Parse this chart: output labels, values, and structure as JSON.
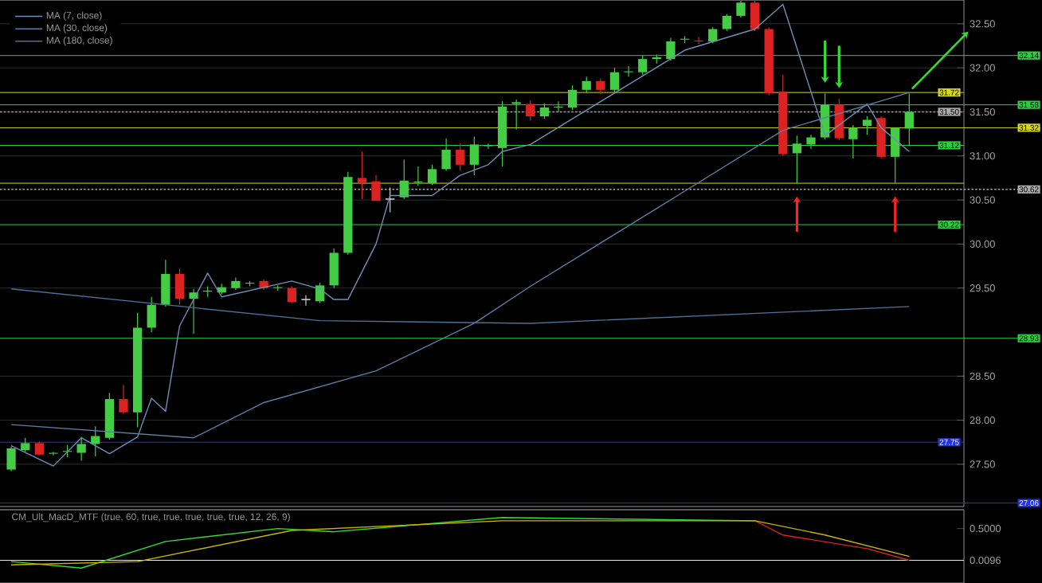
{
  "chart_data": [
    {
      "type": "candlestick",
      "categories": [
        null,
        null,
        null,
        null,
        null,
        null,
        null,
        null,
        null,
        null,
        null,
        null,
        null,
        null,
        null,
        null,
        null,
        null,
        null,
        null,
        null,
        null,
        null,
        null,
        null,
        null,
        null,
        null,
        null,
        null,
        null,
        null,
        null,
        null,
        null,
        null,
        null,
        null,
        null,
        null,
        null,
        null,
        null,
        null,
        null,
        null,
        null,
        null,
        null,
        null,
        null,
        null,
        null,
        null,
        null,
        null,
        null,
        null,
        null,
        null,
        null,
        null,
        null,
        null,
        null
      ],
      "ohlc": [
        [
          27.44,
          27.7,
          27.42,
          27.68
        ],
        [
          27.66,
          27.8,
          27.64,
          27.74
        ],
        [
          27.74,
          27.76,
          27.6,
          27.61
        ],
        [
          27.62,
          27.64,
          27.6,
          27.63
        ],
        [
          27.64,
          27.72,
          27.58,
          27.65
        ],
        [
          27.63,
          27.81,
          27.54,
          27.73
        ],
        [
          27.73,
          27.93,
          27.59,
          27.82
        ],
        [
          27.8,
          28.31,
          27.78,
          28.24
        ],
        [
          28.24,
          28.4,
          28.07,
          28.09
        ],
        [
          28.09,
          29.22,
          27.92,
          29.05
        ],
        [
          29.05,
          29.4,
          29.0,
          29.31
        ],
        [
          29.31,
          29.82,
          29.29,
          29.66
        ],
        [
          29.66,
          29.72,
          29.31,
          29.38
        ],
        [
          29.38,
          29.49,
          28.98,
          29.45
        ],
        [
          29.46,
          29.52,
          29.4,
          29.47
        ],
        [
          29.45,
          29.55,
          29.43,
          29.51
        ],
        [
          29.5,
          29.62,
          29.48,
          29.58
        ],
        [
          29.55,
          29.58,
          29.52,
          29.56
        ],
        [
          29.58,
          29.6,
          29.48,
          29.5
        ],
        [
          29.5,
          29.53,
          29.47,
          29.51
        ],
        [
          29.5,
          29.52,
          29.33,
          29.34
        ],
        [
          29.37,
          29.42,
          29.3,
          29.37
        ],
        [
          29.35,
          29.56,
          29.33,
          29.53
        ],
        [
          29.53,
          29.95,
          29.5,
          29.9
        ],
        [
          29.9,
          30.82,
          29.88,
          30.76
        ],
        [
          30.75,
          31.05,
          30.51,
          30.69
        ],
        [
          30.71,
          30.78,
          30.49,
          30.49
        ],
        [
          30.51,
          30.64,
          30.36,
          30.51
        ],
        [
          30.53,
          30.96,
          30.51,
          30.72
        ],
        [
          30.7,
          30.88,
          30.66,
          30.71
        ],
        [
          30.69,
          30.9,
          30.67,
          30.85
        ],
        [
          30.85,
          31.2,
          30.83,
          31.07
        ],
        [
          31.07,
          31.14,
          30.83,
          30.9
        ],
        [
          30.9,
          31.22,
          30.78,
          31.13
        ],
        [
          31.11,
          31.14,
          31.08,
          31.12
        ],
        [
          31.09,
          31.62,
          30.88,
          31.56
        ],
        [
          31.59,
          31.64,
          31.3,
          31.61
        ],
        [
          31.59,
          31.63,
          31.4,
          31.45
        ],
        [
          31.45,
          31.6,
          31.42,
          31.55
        ],
        [
          31.55,
          31.62,
          31.5,
          31.56
        ],
        [
          31.55,
          31.8,
          31.52,
          31.75
        ],
        [
          31.75,
          31.9,
          31.72,
          31.85
        ],
        [
          31.85,
          31.88,
          31.7,
          31.75
        ],
        [
          31.75,
          32.0,
          31.72,
          31.95
        ],
        [
          31.95,
          32.02,
          31.9,
          31.96
        ],
        [
          31.95,
          32.14,
          31.92,
          32.1
        ],
        [
          32.1,
          32.15,
          32.05,
          32.12
        ],
        [
          32.1,
          32.34,
          32.08,
          32.3
        ],
        [
          32.32,
          32.36,
          32.28,
          32.33
        ],
        [
          32.31,
          32.35,
          32.27,
          32.3
        ],
        [
          32.3,
          32.46,
          32.28,
          32.44
        ],
        [
          32.44,
          32.61,
          32.42,
          32.59
        ],
        [
          32.59,
          32.76,
          32.57,
          32.74
        ],
        [
          32.74,
          32.76,
          32.42,
          32.44
        ],
        [
          32.44,
          32.46,
          31.69,
          31.71
        ],
        [
          31.73,
          31.92,
          31.0,
          31.02
        ],
        [
          31.03,
          31.23,
          30.69,
          31.14
        ],
        [
          31.13,
          31.24,
          31.08,
          31.21
        ],
        [
          31.21,
          31.71,
          31.19,
          31.58
        ],
        [
          31.58,
          31.65,
          31.18,
          31.2
        ],
        [
          31.19,
          31.35,
          30.97,
          31.32
        ],
        [
          31.34,
          31.45,
          31.24,
          31.41
        ],
        [
          31.43,
          31.45,
          30.97,
          30.99
        ],
        [
          30.99,
          31.32,
          30.69,
          31.32
        ],
        [
          31.31,
          31.71,
          31.11,
          31.5
        ]
      ],
      "series": [
        {
          "name": "MA (7, close)",
          "type": "line",
          "color": "#6f8fb8",
          "values": [
            27.71,
            null,
            null,
            27.48,
            null,
            27.8,
            null,
            27.62,
            null,
            27.81,
            28.25,
            28.1,
            29.07,
            null,
            29.67,
            29.4,
            null,
            null,
            null,
            null,
            29.58,
            null,
            29.49,
            29.37,
            29.37,
            null,
            30.0,
            30.55,
            null,
            null,
            30.55,
            null,
            30.78,
            null,
            30.9,
            31.05,
            null,
            31.13,
            null,
            null,
            null,
            null,
            null,
            null,
            null,
            null,
            null,
            null,
            32.2,
            null,
            null,
            null,
            null,
            32.44,
            null,
            32.72,
            null,
            null,
            31.23,
            null,
            null,
            31.59,
            31.32,
            null,
            31.05
          ]
        },
        {
          "name": "MA (30, close)",
          "type": "line",
          "color": "#5d7ea6",
          "values": [
            27.95,
            null,
            null,
            null,
            null,
            null,
            null,
            null,
            null,
            null,
            null,
            null,
            null,
            27.8,
            null,
            null,
            null,
            null,
            28.2,
            null,
            null,
            null,
            null,
            null,
            null,
            null,
            28.56,
            null,
            null,
            null,
            null,
            null,
            null,
            29.1,
            null,
            null,
            null,
            29.52,
            null,
            null,
            null,
            null,
            null,
            null,
            null,
            null,
            null,
            null,
            30.6,
            null,
            null,
            null,
            null,
            null,
            null,
            31.29,
            null,
            null,
            null,
            null,
            null,
            null,
            null,
            null,
            31.72
          ]
        },
        {
          "name": "MA (180, close)",
          "type": "line",
          "color": "#4d6f99",
          "values": [
            29.49,
            null,
            null,
            null,
            null,
            null,
            null,
            null,
            null,
            null,
            null,
            null,
            null,
            null,
            null,
            null,
            null,
            null,
            null,
            null,
            null,
            null,
            29.13,
            null,
            null,
            null,
            null,
            null,
            null,
            null,
            null,
            null,
            null,
            null,
            null,
            null,
            null,
            29.1,
            null,
            null,
            null,
            null,
            null,
            null,
            null,
            null,
            null,
            null,
            null,
            null,
            null,
            null,
            null,
            null,
            null,
            null,
            null,
            null,
            null,
            null,
            null,
            null,
            null,
            null,
            29.29
          ]
        }
      ],
      "ylim": [
        27.02,
        32.77
      ],
      "yticks": [
        {
          "value": 27.5,
          "label": "27.50"
        },
        {
          "value": 28,
          "label": "28.00"
        },
        {
          "value": 28.5,
          "label": "28.50"
        },
        {
          "value": 29.5,
          "label": "29.50"
        },
        {
          "value": 30,
          "label": "30.00"
        },
        {
          "value": 30.5,
          "label": "30.50"
        },
        {
          "value": 31,
          "label": "31.00"
        },
        {
          "value": 31.5,
          "label": "31.50"
        },
        {
          "value": 32,
          "label": "32.00"
        },
        {
          "value": 32.5,
          "label": "32.50"
        }
      ],
      "ref_lines": [
        {
          "axis": "y",
          "value": 32.14,
          "label": "32.14",
          "color": "#2ecc40"
        },
        {
          "axis": "y",
          "value": 31.72,
          "label": "31.72",
          "color": "#d4d42a"
        },
        {
          "axis": "y",
          "value": 31.58,
          "label": "31.58",
          "color": "#2ecc40"
        },
        {
          "axis": "y",
          "value": 31.5,
          "label": "31.50",
          "color": "#aaaaaa",
          "line_style": "dotted"
        },
        {
          "axis": "y",
          "value": 31.32,
          "label": "31.32",
          "color": "#d4d42a"
        },
        {
          "axis": "y",
          "value": 31.12,
          "label": "31.12",
          "color": "#2ecc40"
        },
        {
          "axis": "y",
          "value": 30.69,
          "color": "#d4d42a"
        },
        {
          "axis": "y",
          "value": 30.62,
          "label": "30.62",
          "color": "#aaaaaa",
          "line_style": "dotted"
        },
        {
          "axis": "y",
          "value": 30.22,
          "label": "30.22",
          "color": "#2ecc40"
        },
        {
          "axis": "y",
          "value": 28.93,
          "label": "28.93",
          "color": "#2ecc40"
        },
        {
          "axis": "y",
          "value": 27.75,
          "label": "27.75",
          "color": "#2233dd"
        },
        {
          "axis": "y",
          "value": 27.06,
          "label": "27.06",
          "color": "#2233dd"
        }
      ],
      "grid": "y",
      "legend": "top left",
      "tick_labels": "y",
      "line_style": "solid"
    },
    {
      "type": "line",
      "title": "CM_Ult_MacD_MTF (true, 60, true, true, true, true, true, 12, 26, 9)",
      "categories": [
        null,
        null,
        null,
        null,
        null,
        null,
        null,
        null,
        null,
        null,
        null,
        null,
        null,
        null,
        null,
        null,
        null,
        null,
        null,
        null,
        null,
        null,
        null,
        null,
        null,
        null,
        null,
        null,
        null,
        null,
        null,
        null,
        null,
        null,
        null,
        null,
        null,
        null,
        null,
        null,
        null,
        null,
        null,
        null,
        null,
        null,
        null,
        null,
        null,
        null,
        null,
        null,
        null,
        null,
        null,
        null,
        null,
        null,
        null,
        null,
        null,
        null,
        null,
        null,
        null
      ],
      "series": [
        {
          "color": "#33dd33",
          "values": [
            -0.01,
            null,
            null,
            null,
            null,
            -0.11,
            null,
            null,
            null,
            null,
            null,
            0.3,
            null,
            null,
            null,
            null,
            null,
            null,
            null,
            0.5,
            null,
            null,
            null,
            0.45,
            null,
            null,
            null,
            null,
            null,
            null,
            null,
            null,
            null,
            null,
            null,
            0.67,
            null,
            null,
            null,
            null,
            null,
            null,
            null,
            null,
            null,
            null,
            null,
            null,
            null,
            null,
            null,
            null,
            null,
            0.62,
            null,
            null,
            null,
            null,
            null,
            null,
            null,
            null,
            null,
            null,
            null
          ]
        },
        {
          "color": "#dd2222",
          "values": [
            null,
            null,
            null,
            null,
            null,
            null,
            null,
            null,
            null,
            null,
            null,
            null,
            null,
            null,
            null,
            null,
            null,
            null,
            null,
            null,
            null,
            null,
            null,
            null,
            null,
            null,
            null,
            null,
            null,
            null,
            null,
            null,
            null,
            null,
            null,
            null,
            null,
            null,
            null,
            null,
            null,
            null,
            null,
            null,
            null,
            null,
            null,
            null,
            null,
            null,
            null,
            null,
            null,
            0.62,
            null,
            0.4,
            null,
            null,
            null,
            null,
            null,
            0.19,
            null,
            null,
            0.01
          ]
        },
        {
          "color": "#c8b400",
          "values": [
            -0.06,
            null,
            null,
            null,
            null,
            null,
            null,
            null,
            null,
            -0.01,
            null,
            null,
            null,
            null,
            null,
            null,
            null,
            null,
            null,
            null,
            0.47,
            null,
            null,
            null,
            null,
            null,
            null,
            null,
            null,
            null,
            null,
            null,
            null,
            null,
            null,
            0.62,
            null,
            null,
            null,
            null,
            null,
            null,
            null,
            null,
            null,
            null,
            null,
            null,
            null,
            null,
            null,
            null,
            null,
            0.62,
            null,
            null,
            null,
            null,
            0.4,
            null,
            null,
            null,
            null,
            null,
            0.07
          ]
        }
      ],
      "ylim": [
        -0.34,
        0.79
      ],
      "yticks": [
        {
          "value": 0.0096,
          "label": "0.0096"
        },
        {
          "value": 0.5,
          "label": "0.5000"
        }
      ],
      "ref_lines": [
        {
          "axis": "y",
          "value": 0.0096,
          "color": "#eeeeee"
        }
      ],
      "tick_labels": "y",
      "line_style": "solid"
    }
  ]
}
